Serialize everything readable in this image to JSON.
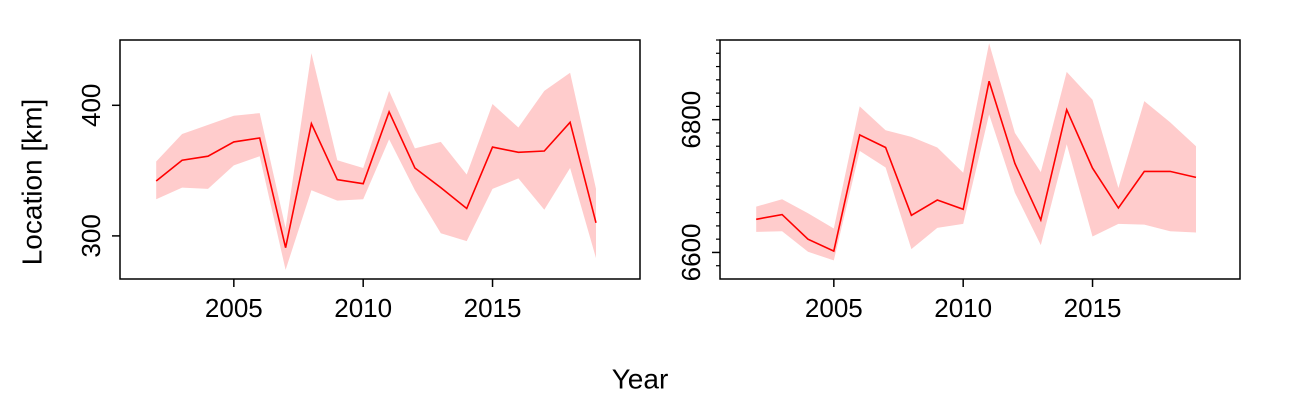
{
  "figure": {
    "xlabel": "Year",
    "ylabel": "Location [km]",
    "colors": {
      "line": "#ff0000",
      "band": "#ffcccc",
      "axis": "#000000"
    }
  },
  "chart_data": [
    {
      "type": "line",
      "xlim": [
        2000.6,
        2020.7
      ],
      "ylim": [
        267,
        450
      ],
      "xticks": [
        2005,
        2010,
        2015
      ],
      "yticks": [
        300,
        400
      ],
      "yticks_minor": [],
      "series": [
        {
          "x": [
            2002,
            2003,
            2004,
            2005,
            2006,
            2007,
            2008,
            2009,
            2010,
            2011,
            2012,
            2013,
            2014,
            2015,
            2016,
            2017,
            2018,
            2019
          ],
          "y": [
            342,
            358,
            361,
            372,
            375,
            291,
            386,
            343,
            340,
            395,
            352,
            337,
            321,
            368,
            364,
            365,
            387,
            310
          ],
          "lower": [
            328,
            337,
            336,
            354,
            361,
            274,
            335,
            327,
            328,
            374,
            335,
            302,
            296,
            336,
            344,
            320,
            352,
            283
          ],
          "upper": [
            357,
            378,
            385,
            392,
            394,
            306,
            440,
            358,
            352,
            411,
            367,
            372,
            347,
            401,
            383,
            411,
            425,
            336
          ]
        }
      ]
    },
    {
      "type": "line",
      "xlim": [
        2000.6,
        2020.7
      ],
      "ylim": [
        6560,
        6920
      ],
      "xticks": [
        2005,
        2010,
        2015
      ],
      "yticks": [
        6600,
        6800
      ],
      "yticks_minor": [
        6580,
        6620,
        6640,
        6660,
        6680,
        6700,
        6720,
        6740,
        6760,
        6780,
        6820,
        6840,
        6860,
        6880,
        6900,
        6920
      ],
      "series": [
        {
          "x": [
            2002,
            2003,
            2004,
            2005,
            2006,
            2007,
            2008,
            2009,
            2010,
            2011,
            2012,
            2013,
            2014,
            2015,
            2016,
            2017,
            2018,
            2019
          ],
          "y": [
            6650,
            6657,
            6620,
            6602,
            6777,
            6758,
            6656,
            6679,
            6665,
            6858,
            6734,
            6649,
            6815,
            6727,
            6667,
            6722,
            6722,
            6713
          ],
          "lower": [
            6631,
            6632,
            6601,
            6588,
            6753,
            6728,
            6605,
            6637,
            6643,
            6808,
            6690,
            6611,
            6763,
            6624,
            6643,
            6642,
            6632,
            6630
          ],
          "upper": [
            6669,
            6680,
            6659,
            6636,
            6820,
            6784,
            6774,
            6758,
            6720,
            6915,
            6780,
            6721,
            6872,
            6830,
            6697,
            6828,
            6796,
            6760
          ]
        }
      ]
    }
  ]
}
